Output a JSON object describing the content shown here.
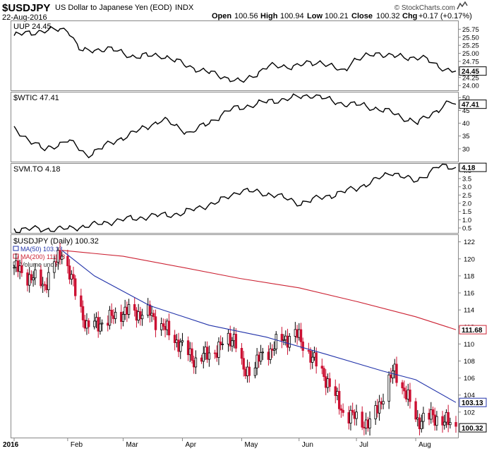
{
  "header": {
    "symbol": "$USDJPY",
    "description": "US Dollar to Japanese Yen (EOD)",
    "exchange": "INDX",
    "date": "22-Aug-2016",
    "open_label": "Open",
    "open": "100.56",
    "high_label": "High",
    "high": "100.94",
    "low_label": "Low",
    "low": "100.21",
    "close_label": "Close",
    "close": "100.32",
    "chg_label": "Chg",
    "chg": "+0.17 (+0.17%)",
    "brand": "© StockCharts.com",
    "brand_icon": "stockcharts-arrow-icon"
  },
  "colors": {
    "price_up": "#000000",
    "price_down": "#cc1133",
    "ma50": "#2233aa",
    "ma200": "#cc2233",
    "panel_line": "#000000"
  },
  "chart_data": [
    {
      "type": "line",
      "title": "UUP 24.45",
      "last_value_label": "24.45",
      "ylim": [
        23.85,
        26.0
      ],
      "yticks": [
        "25.75",
        "25.50",
        "25.25",
        "25.00",
        "24.75",
        "24.50",
        "24.25",
        "24.00"
      ],
      "x": [
        "2016-01-04",
        "2016-01-18",
        "2016-02-01",
        "2016-02-08",
        "2016-02-22",
        "2016-03-07",
        "2016-03-21",
        "2016-04-04",
        "2016-04-18",
        "2016-05-02",
        "2016-05-16",
        "2016-05-30",
        "2016-06-13",
        "2016-06-24",
        "2016-06-29",
        "2016-07-13",
        "2016-07-27",
        "2016-08-04",
        "2016-08-12",
        "2016-08-22"
      ],
      "values": [
        25.55,
        25.7,
        25.75,
        25.05,
        25.15,
        24.9,
        24.95,
        24.6,
        24.35,
        24.1,
        24.6,
        24.6,
        24.75,
        24.4,
        24.8,
        25.0,
        24.85,
        24.9,
        24.6,
        24.45
      ]
    },
    {
      "type": "line",
      "title": "$WTIC 47.41",
      "last_value_label": "47.41",
      "ylim": [
        25,
        52
      ],
      "yticks": [
        "50",
        "45",
        "40",
        "35",
        "30"
      ],
      "x": [
        "2016-01-04",
        "2016-01-20",
        "2016-02-01",
        "2016-02-11",
        "2016-03-01",
        "2016-03-22",
        "2016-04-05",
        "2016-04-27",
        "2016-05-16",
        "2016-06-08",
        "2016-06-24",
        "2016-07-05",
        "2016-07-20",
        "2016-08-02",
        "2016-08-12",
        "2016-08-19",
        "2016-08-22"
      ],
      "values": [
        37.5,
        29.5,
        33.5,
        27.5,
        34.5,
        41.5,
        36.0,
        45.5,
        48.5,
        51.0,
        47.5,
        47.0,
        44.0,
        40.0,
        45.0,
        48.5,
        47.41
      ]
    },
    {
      "type": "line",
      "title": "SVM.TO 4.18",
      "last_value_label": "4.18",
      "ylim": [
        0.2,
        4.4
      ],
      "yticks": [
        "4.0",
        "3.5",
        "3.0",
        "2.5",
        "2.0",
        "1.5",
        "1.0",
        "0.5"
      ],
      "x": [
        "2016-01-04",
        "2016-02-01",
        "2016-02-15",
        "2016-03-01",
        "2016-03-15",
        "2016-04-01",
        "2016-04-20",
        "2016-05-02",
        "2016-05-20",
        "2016-06-01",
        "2016-06-15",
        "2016-07-01",
        "2016-07-20",
        "2016-08-01",
        "2016-08-12",
        "2016-08-22"
      ],
      "values": [
        0.4,
        0.45,
        0.7,
        1.0,
        1.2,
        1.4,
        2.1,
        2.8,
        2.5,
        2.0,
        2.4,
        2.9,
        3.9,
        3.3,
        4.2,
        4.18
      ]
    },
    {
      "type": "candlestick",
      "title": "$USDJPY (Daily) 100.32",
      "ylim": [
        99.0,
        122.8
      ],
      "yticks": [
        "122",
        "120",
        "118",
        "116",
        "114",
        "112",
        "110",
        "108",
        "106",
        "104",
        "102"
      ],
      "xticks": [
        "2016",
        "Feb",
        "Mar",
        "Apr",
        "May",
        "Jun",
        "Jul",
        "Aug"
      ],
      "xtick_dates": [
        "2016-01-04",
        "2016-02-01",
        "2016-03-01",
        "2016-04-01",
        "2016-05-02",
        "2016-06-01",
        "2016-07-01",
        "2016-08-01"
      ],
      "last_value_label": "100.32",
      "date_range": [
        "2016-01-04",
        "2016-08-22"
      ],
      "price_anchors": [
        [
          "2016-01-04",
          119.0
        ],
        [
          "2016-01-11",
          118.0
        ],
        [
          "2016-01-20",
          117.0
        ],
        [
          "2016-01-29",
          121.0
        ],
        [
          "2016-02-11",
          112.0
        ],
        [
          "2016-02-22",
          112.8
        ],
        [
          "2016-03-01",
          113.8
        ],
        [
          "2016-03-15",
          113.5
        ],
        [
          "2016-03-22",
          112.0
        ],
        [
          "2016-04-08",
          108.0
        ],
        [
          "2016-04-20",
          109.5
        ],
        [
          "2016-04-28",
          111.0
        ],
        [
          "2016-05-03",
          106.5
        ],
        [
          "2016-05-20",
          110.0
        ],
        [
          "2016-05-30",
          111.3
        ],
        [
          "2016-06-15",
          106.0
        ],
        [
          "2016-06-24",
          102.0
        ],
        [
          "2016-07-08",
          100.5
        ],
        [
          "2016-07-21",
          107.0
        ],
        [
          "2016-08-02",
          101.0
        ],
        [
          "2016-08-10",
          101.5
        ],
        [
          "2016-08-22",
          100.32
        ]
      ],
      "series": [
        {
          "name": "MA(50)",
          "label": "MA(50) 103.13",
          "last_value_label": "103.13",
          "x": [
            "2016-01-29",
            "2016-02-15",
            "2016-03-15",
            "2016-04-15",
            "2016-05-15",
            "2016-06-15",
            "2016-07-15",
            "2016-08-01",
            "2016-08-22"
          ],
          "values": [
            121.0,
            118.0,
            114.5,
            112.2,
            110.8,
            108.8,
            106.8,
            105.8,
            103.13
          ]
        },
        {
          "name": "MA(200)",
          "label": "MA(200) 111.68",
          "last_value_label": "111.68",
          "x": [
            "2016-01-29",
            "2016-03-01",
            "2016-04-01",
            "2016-05-01",
            "2016-06-01",
            "2016-07-01",
            "2016-08-01",
            "2016-08-22"
          ],
          "values": [
            121.0,
            120.3,
            119.0,
            117.7,
            116.6,
            115.0,
            113.2,
            111.68
          ]
        }
      ],
      "volume_label": "Volume undef"
    }
  ]
}
